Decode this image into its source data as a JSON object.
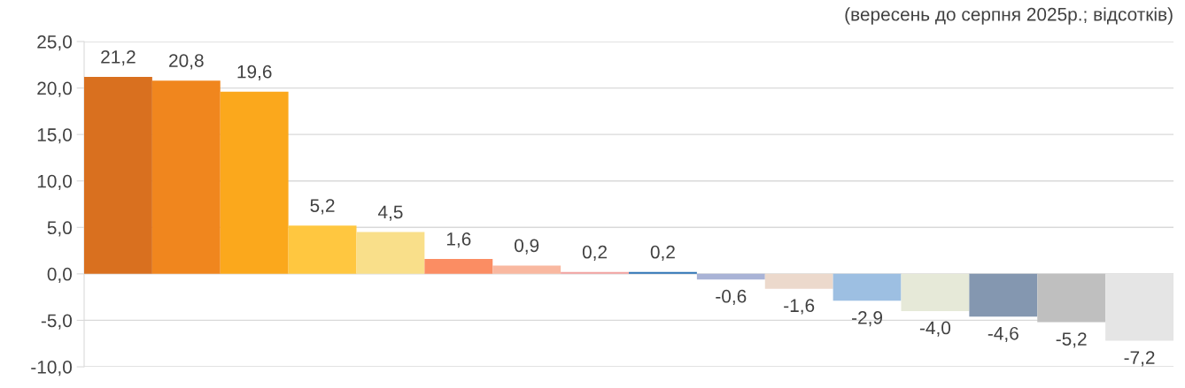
{
  "chart_data": {
    "type": "bar",
    "subtitle": "(вересень до серпня 2025р.; відсотків)",
    "categories": [
      null,
      null,
      null,
      null,
      null,
      null,
      null,
      null,
      null,
      null,
      null,
      null,
      null,
      null,
      null,
      null
    ],
    "values": [
      21.2,
      20.8,
      19.6,
      5.2,
      4.5,
      1.6,
      0.9,
      0.2,
      0.2,
      -0.6,
      -1.6,
      -2.9,
      -4.0,
      -4.6,
      -5.2,
      -7.2
    ],
    "value_labels": [
      "21,2",
      "20,8",
      "19,6",
      "5,2",
      "4,5",
      "1,6",
      "0,9",
      "0,2",
      "0,2",
      "-0,6",
      "-1,6",
      "-2,9",
      "-4,0",
      "-4,6",
      "-5,2",
      "-7,2"
    ],
    "colors": [
      "#d9701f",
      "#f0861e",
      "#fba81c",
      "#ffc740",
      "#f9df8a",
      "#fb8d63",
      "#f9b8a0",
      "#f2a2a0",
      "#2e75b6",
      "#a9b3d6",
      "#ecd9cc",
      "#9dbfe2",
      "#e6e9d8",
      "#8497b0",
      "#bfbfbf",
      "#e5e5e5"
    ],
    "ylim": [
      -10,
      25
    ],
    "yticks": [
      {
        "value": -10,
        "label": "-10,0"
      },
      {
        "value": -5,
        "label": "-5,0"
      },
      {
        "value": 0,
        "label": "0,0"
      },
      {
        "value": 5,
        "label": "5,0"
      },
      {
        "value": 10,
        "label": "10,0"
      },
      {
        "value": 15,
        "label": "15,0"
      },
      {
        "value": 20,
        "label": "20,0"
      },
      {
        "value": 25,
        "label": "25,0"
      }
    ],
    "grid": "y"
  }
}
